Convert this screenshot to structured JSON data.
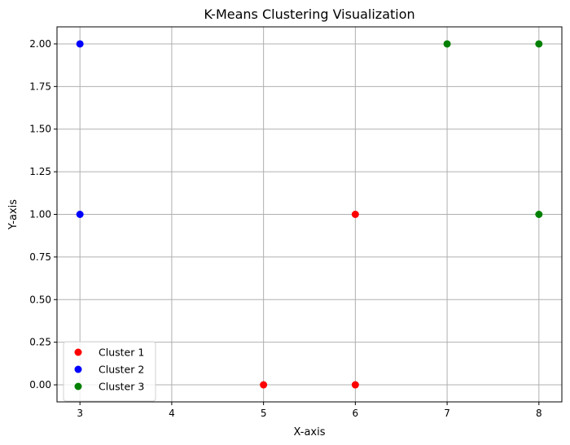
{
  "chart_data": {
    "type": "scatter",
    "title": "K-Means Clustering Visualization",
    "xlabel": "X-axis",
    "ylabel": "Y-axis",
    "xlim": [
      2.75,
      8.25
    ],
    "ylim": [
      -0.1,
      2.1
    ],
    "xticks": [
      3,
      4,
      5,
      6,
      7,
      8
    ],
    "yticks": [
      0.0,
      0.25,
      0.5,
      0.75,
      1.0,
      1.25,
      1.5,
      1.75,
      2.0
    ],
    "grid": true,
    "legend_position": "lower-left",
    "series": [
      {
        "name": "Cluster 1",
        "color": "#ff0000",
        "points": [
          [
            5,
            0
          ],
          [
            6,
            0
          ],
          [
            6,
            1
          ]
        ]
      },
      {
        "name": "Cluster 2",
        "color": "#0000ff",
        "points": [
          [
            3,
            1
          ],
          [
            3,
            2
          ]
        ]
      },
      {
        "name": "Cluster 3",
        "color": "#008000",
        "points": [
          [
            7,
            2
          ],
          [
            8,
            2
          ],
          [
            8,
            1
          ]
        ]
      }
    ]
  }
}
